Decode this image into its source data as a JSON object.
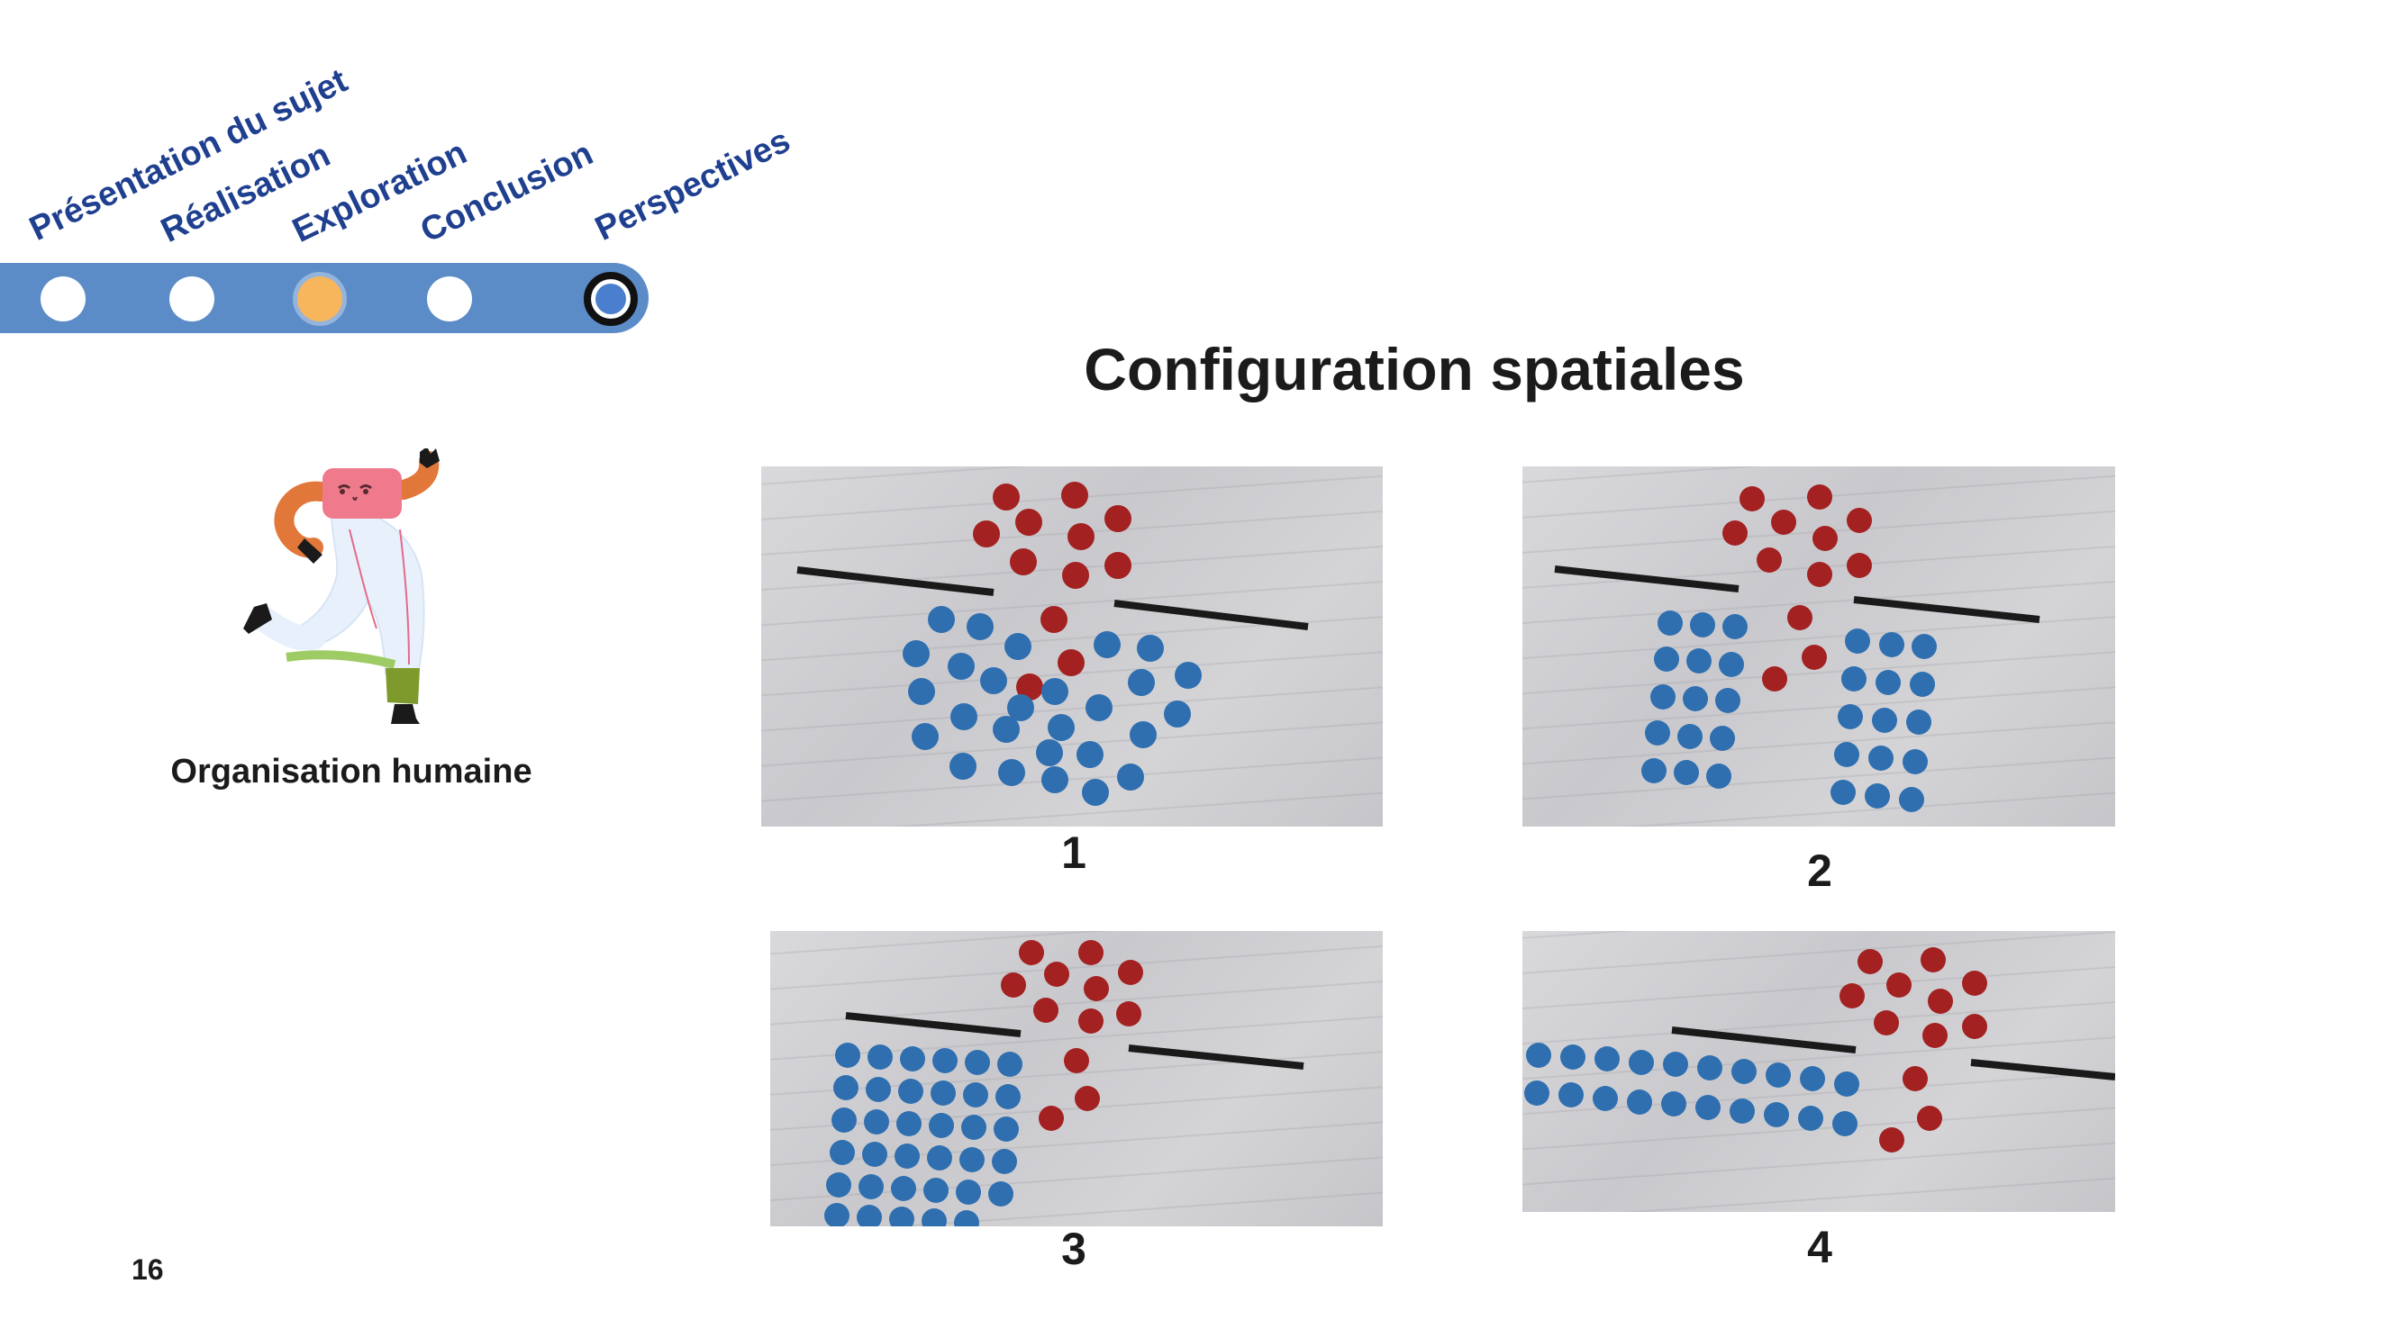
{
  "nav": {
    "items": [
      {
        "label": "Présentation du sujet",
        "state": "done"
      },
      {
        "label": "Réalisation",
        "state": "done"
      },
      {
        "label": "Exploration",
        "state": "active"
      },
      {
        "label": "Conclusion",
        "state": "pending"
      },
      {
        "label": "Perspectives",
        "state": "current"
      }
    ],
    "colors": {
      "track": "#5b8cc8",
      "label": "#1f3f8f",
      "active_dot": "#f7b65c"
    }
  },
  "slide": {
    "title": "Configuration spatiales",
    "caption": "Organisation humaine",
    "page_number": "16"
  },
  "panels": [
    {
      "label": "1"
    },
    {
      "label": "2"
    },
    {
      "label": "3"
    },
    {
      "label": "4"
    }
  ],
  "colors": {
    "blue_dot": "#2f6fb0",
    "red_dot": "#a32121",
    "barrier": "#1a1a1a"
  }
}
